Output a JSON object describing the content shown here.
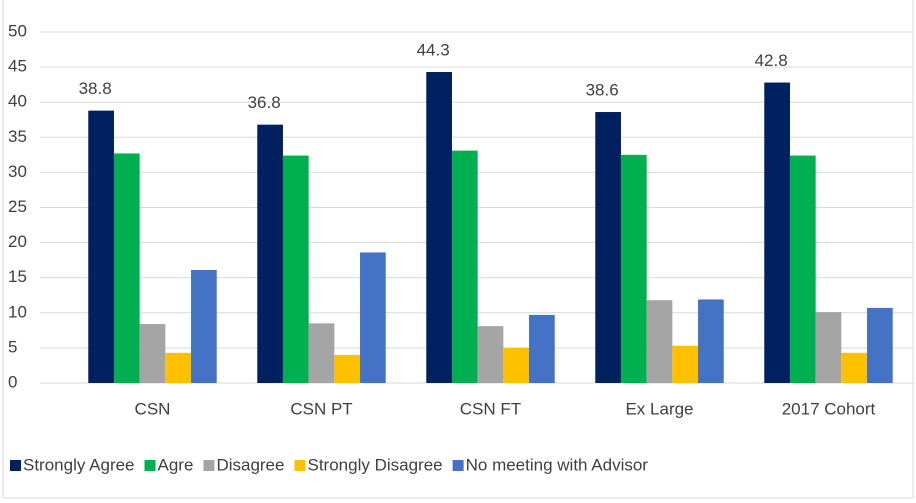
{
  "chart_data": {
    "type": "bar",
    "categories": [
      "CSN",
      "CSN PT",
      "CSN FT",
      "Ex Large",
      "2017 Cohort"
    ],
    "series": [
      {
        "name": "Strongly Agree",
        "color": "#002060",
        "values": [
          38.8,
          36.8,
          44.3,
          38.6,
          42.8
        ],
        "data_labels": true
      },
      {
        "name": "Agre",
        "color": "#00b050",
        "values": [
          32.7,
          32.4,
          33.1,
          32.5,
          32.4
        ]
      },
      {
        "name": "Disagree",
        "color": "#a5a5a5",
        "values": [
          8.4,
          8.5,
          8.1,
          11.8,
          10.1
        ]
      },
      {
        "name": "Strongly Disagree",
        "color": "#ffc000",
        "values": [
          4.3,
          4.0,
          5.0,
          5.3,
          4.3
        ]
      },
      {
        "name": "No meeting with Advisor",
        "color": "#4472c4",
        "values": [
          16.1,
          18.6,
          9.7,
          11.9,
          10.7
        ]
      }
    ],
    "ylim": [
      0,
      50
    ],
    "yticks": [
      0,
      5,
      10,
      15,
      20,
      25,
      30,
      35,
      40,
      45,
      50
    ],
    "grid": true,
    "legend": "bottom"
  }
}
